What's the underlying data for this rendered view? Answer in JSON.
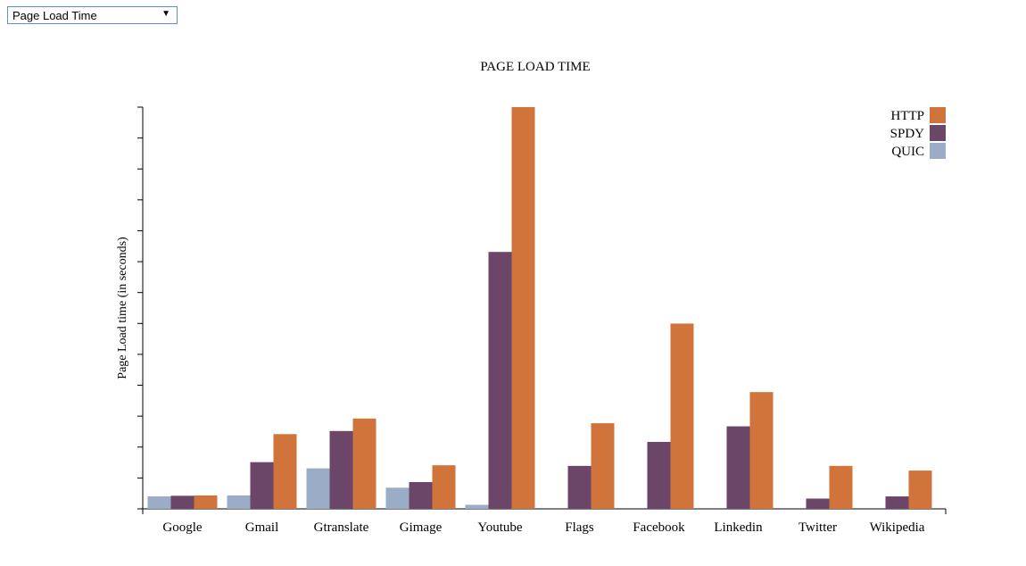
{
  "metric_select": {
    "selected": "Page Load Time",
    "arrow_icon": "triangle-down-icon"
  },
  "chart_data": {
    "type": "bar",
    "title": "PAGE LOAD TIME",
    "ylabel": "Page Load time (in seconds)",
    "xlabel": "",
    "categories": [
      "Google",
      "Gmail",
      "Gtranslate",
      "Gimage",
      "Youtube",
      "Flags",
      "Facebook",
      "Linkedin",
      "Twitter",
      "Wikipedia"
    ],
    "ylim": [
      0,
      12.9
    ],
    "y_tick_count": 13,
    "show_y_tick_labels": false,
    "grid": false,
    "legend_position": "top-right",
    "series": [
      {
        "name": "QUIC",
        "color": "#9aacc6",
        "values": [
          0.4,
          0.43,
          1.3,
          0.68,
          0.13,
          null,
          null,
          null,
          null,
          null
        ]
      },
      {
        "name": "SPDY",
        "color": "#6b4669",
        "values": [
          0.42,
          1.5,
          2.5,
          0.86,
          8.25,
          1.38,
          2.15,
          2.65,
          0.33,
          0.4
        ]
      },
      {
        "name": "HTTP",
        "color": "#d1743b",
        "values": [
          0.43,
          2.4,
          2.9,
          1.4,
          12.9,
          2.75,
          5.95,
          3.75,
          1.38,
          1.23
        ]
      }
    ],
    "legend_order": [
      "HTTP",
      "SPDY",
      "QUIC"
    ]
  }
}
